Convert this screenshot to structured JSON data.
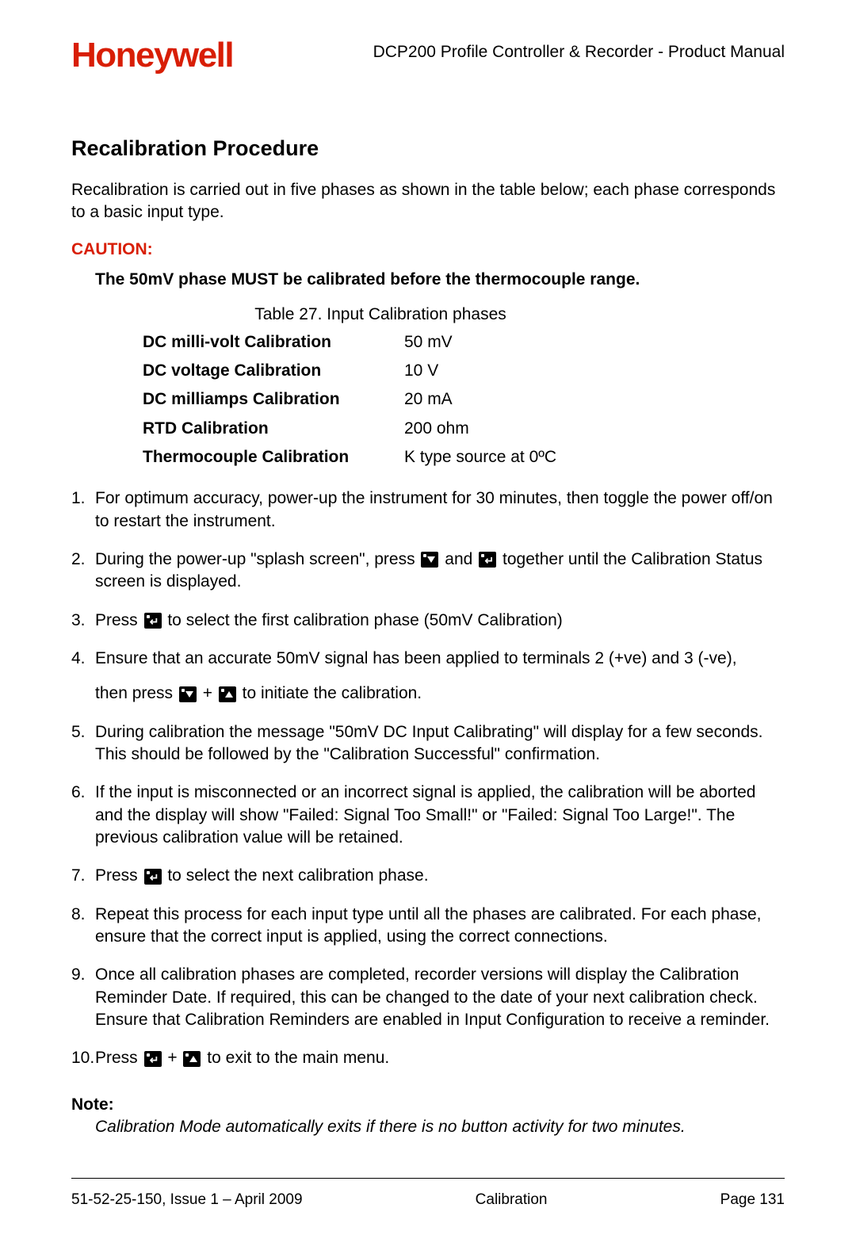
{
  "header": {
    "logo_text": "Honeywell",
    "logo_color": "#d81e05",
    "doc_title": "DCP200 Profile Controller & Recorder - Product Manual"
  },
  "section": {
    "heading": "Recalibration Procedure",
    "intro": "Recalibration is carried out in five phases as shown in the table below; each phase corresponds to a basic input type.",
    "caution_label": "CAUTION:",
    "caution_text": "The 50mV phase MUST be calibrated before the thermocouple range.",
    "table_caption": "Table 27. Input Calibration phases",
    "phases": [
      {
        "label": "DC milli-volt Calibration",
        "value": "50 mV"
      },
      {
        "label": "DC voltage Calibration",
        "value": "10 V"
      },
      {
        "label": "DC milliamps Calibration",
        "value": "20 mA"
      },
      {
        "label": "RTD Calibration",
        "value": "200 ohm"
      },
      {
        "label": "Thermocouple Calibration",
        "value": "K type source at 0ºC"
      }
    ]
  },
  "steps": {
    "s1": {
      "num": "1.",
      "text": "For optimum accuracy, power-up the instrument for 30 minutes, then toggle the power off/on to restart the instrument."
    },
    "s2": {
      "num": "2.",
      "a": "During the power-up \"splash screen\", press ",
      "b": " and ",
      "c": " together until the Calibration Status screen is displayed."
    },
    "s3": {
      "num": "3.",
      "a": "Press ",
      "b": " to select the first calibration phase (50mV Calibration)"
    },
    "s4": {
      "num": "4.",
      "line1": "Ensure that an accurate 50mV signal has been applied to terminals 2 (+ve) and 3 (-ve),",
      "a": "then press ",
      "b": " + ",
      "c": " to initiate the calibration."
    },
    "s5": {
      "num": "5.",
      "text": "During calibration the message \"50mV DC Input Calibrating\" will display for a few seconds. This should be followed by the \"Calibration Successful\" confirmation."
    },
    "s6": {
      "num": "6.",
      "text": "If the input is misconnected or an incorrect signal is applied, the calibration will be aborted and the display will show \"Failed: Signal Too Small!\" or \"Failed: Signal Too Large!\".  The previous calibration value will be retained."
    },
    "s7": {
      "num": "7.",
      "a": "Press ",
      "b": " to select the next calibration phase."
    },
    "s8": {
      "num": "8.",
      "text": "Repeat this process for each input type until all the phases are calibrated. For each phase, ensure that the correct input is applied, using the correct connections."
    },
    "s9": {
      "num": "9.",
      "text": "Once all calibration phases are completed, recorder versions will display the Calibration Reminder Date. If required, this can be changed to the date of your next calibration check. Ensure that Calibration Reminders are enabled in Input Configuration to receive a reminder."
    },
    "s10": {
      "num": "10.",
      "a": "Press ",
      "b": " + ",
      "c": " to exit to the main menu."
    }
  },
  "note": {
    "label": "Note:",
    "text": "Calibration Mode automatically exits if there is no button activity for two minutes."
  },
  "footer": {
    "left": "51-52-25-150, Issue 1 – April 2009",
    "center": "Calibration",
    "right": "Page 131"
  }
}
